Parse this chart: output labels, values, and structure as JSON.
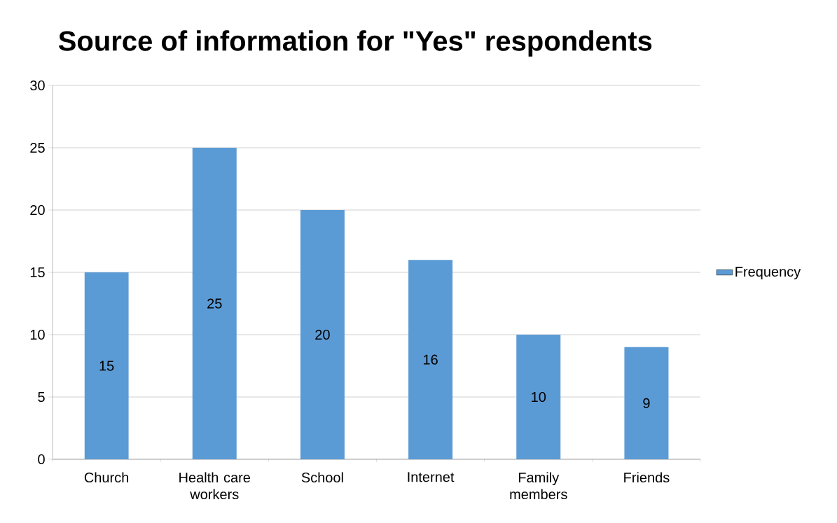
{
  "chart_data": {
    "type": "bar",
    "title": "Source of information for \"Yes\" respondents",
    "categories": [
      "Church",
      "Health care workers",
      "School",
      "Internet",
      "Family members",
      "Friends"
    ],
    "series": [
      {
        "name": "Frequency",
        "color": "#5b9bd5",
        "values": [
          15,
          25,
          20,
          16,
          10,
          9
        ]
      }
    ],
    "ylim": [
      0,
      30
    ],
    "yticks": [
      0,
      5,
      10,
      15,
      20,
      25,
      30
    ],
    "grid": "y",
    "legend": "right",
    "data_labels": true
  }
}
